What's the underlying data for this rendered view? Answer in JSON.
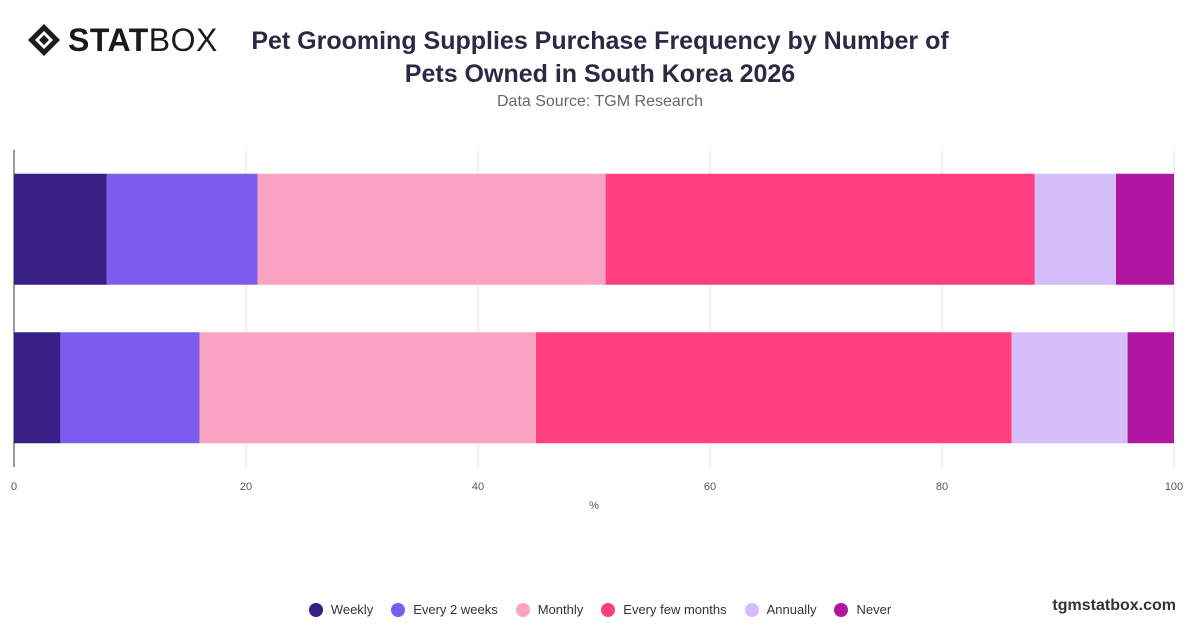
{
  "brand": {
    "bold": "STAT",
    "light": "BOX"
  },
  "header": {
    "title": "Pet Grooming Supplies Purchase Frequency by Number of Pets Owned in South Korea 2026",
    "subtitle": "Data Source: TGM Research"
  },
  "footer": {
    "site": "tgmstatbox.com"
  },
  "chart_data": {
    "type": "bar",
    "orientation": "horizontal",
    "stacked": true,
    "categories": [
      "",
      ""
    ],
    "series": [
      {
        "name": "Weekly",
        "color": "#371f86",
        "values": [
          8,
          4
        ]
      },
      {
        "name": "Every 2 weeks",
        "color": "#7b5ced",
        "values": [
          13,
          12
        ]
      },
      {
        "name": "Monthly",
        "color": "#fca3c3",
        "values": [
          30,
          29
        ]
      },
      {
        "name": "Every few months",
        "color": "#ff3f80",
        "values": [
          37,
          41
        ]
      },
      {
        "name": "Annually",
        "color": "#d5bdfa",
        "values": [
          7,
          10
        ]
      },
      {
        "name": "Never",
        "color": "#b0169f",
        "values": [
          5,
          4
        ]
      }
    ],
    "xlabel": "%",
    "xlim": [
      0,
      100
    ],
    "xticks": [
      0,
      20,
      40,
      60,
      80,
      100
    ],
    "grid": true,
    "legend": "bottom"
  }
}
